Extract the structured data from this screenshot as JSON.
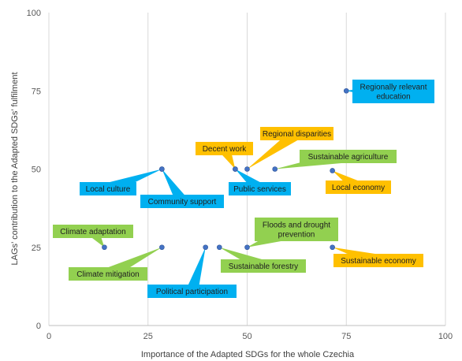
{
  "chart_data": {
    "type": "scatter",
    "title": "",
    "xlabel": "Importance of the Adapted SDGs for the whole Czechia",
    "ylabel": "LAGs’ contribution to the Adapted SDGs’ fulfilment",
    "xlim": [
      0,
      100
    ],
    "ylim": [
      0,
      100
    ],
    "xticks": [
      "0",
      "25",
      "50",
      "75",
      "100"
    ],
    "yticks": [
      "0",
      "25",
      "50",
      "75",
      "100"
    ],
    "grid": "vertical",
    "legend": "none",
    "colors": {
      "blue": "#00b0f0",
      "orange": "#ffc000",
      "green": "#92d050",
      "point": "#4472c4"
    },
    "points": [
      {
        "x": 75,
        "y": 75,
        "label": [
          "Regionally relevant",
          "education"
        ],
        "color": "blue"
      },
      {
        "x": 50,
        "y": 50,
        "label": [
          "Regional disparities"
        ],
        "color": "orange"
      },
      {
        "x": 47,
        "y": 50,
        "label": [
          "Decent work"
        ],
        "color": "orange"
      },
      {
        "x": 57,
        "y": 50,
        "label": [
          "Sustainable agriculture"
        ],
        "color": "green"
      },
      {
        "x": 28.5,
        "y": 50,
        "label": [
          "Local culture"
        ],
        "color": "blue"
      },
      {
        "x": 28.5,
        "y": 50,
        "label": [
          "Community support"
        ],
        "color": "blue"
      },
      {
        "x": 47,
        "y": 50,
        "label": [
          "Public services"
        ],
        "color": "blue"
      },
      {
        "x": 71.5,
        "y": 49.5,
        "label": [
          "Local economy"
        ],
        "color": "orange"
      },
      {
        "x": 14,
        "y": 25,
        "label": [
          "Climate adaptation"
        ],
        "color": "green"
      },
      {
        "x": 28.5,
        "y": 25,
        "label": [
          "Climate mitigation"
        ],
        "color": "green"
      },
      {
        "x": 39.5,
        "y": 25,
        "label": [
          "Political participation"
        ],
        "color": "blue"
      },
      {
        "x": 43,
        "y": 25,
        "label": [
          "Sustainable forestry"
        ],
        "color": "green"
      },
      {
        "x": 50,
        "y": 25,
        "label": [
          "Floods and drought",
          "prevention"
        ],
        "color": "green"
      },
      {
        "x": 71.5,
        "y": 25,
        "label": [
          "Sustainable economy"
        ],
        "color": "orange"
      }
    ]
  }
}
